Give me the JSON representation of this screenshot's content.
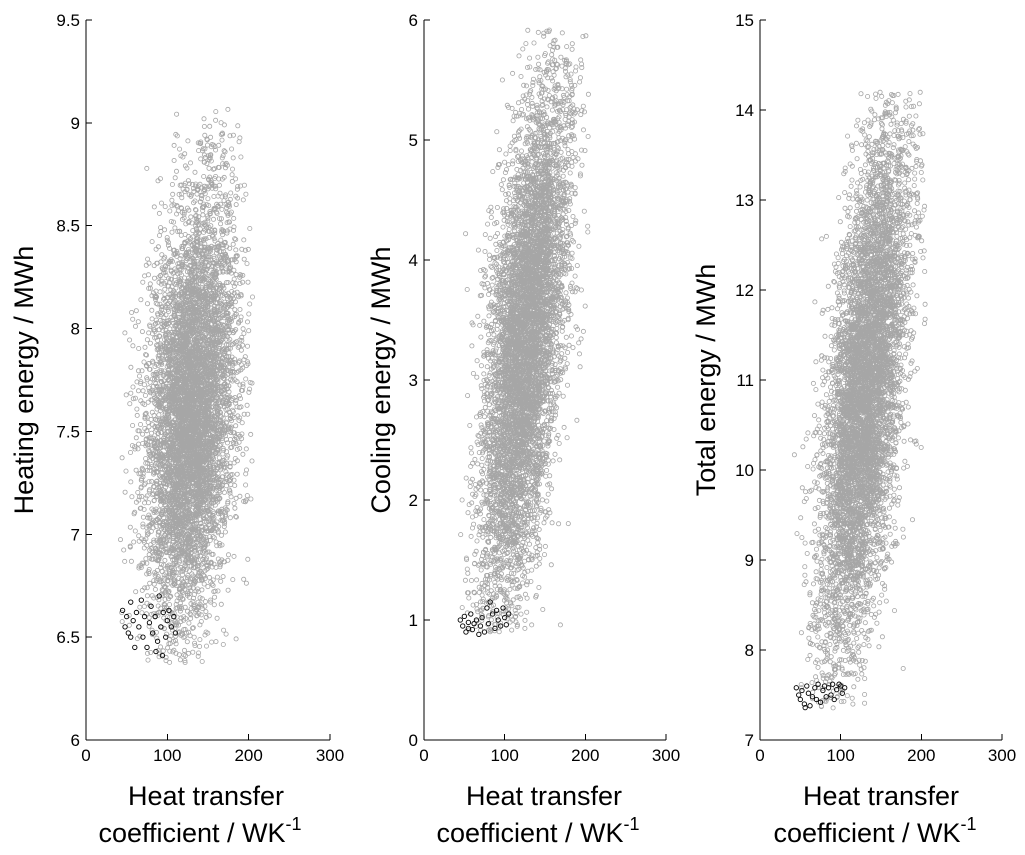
{
  "chart_data": [
    {
      "type": "scatter",
      "xlabel_line1": "Heat transfer",
      "xlabel_line2": "coefficient / WK",
      "xlabel_sup": "-1",
      "ylabel": "Heating energy / MWh",
      "xlim": [
        0,
        300
      ],
      "ylim": [
        6,
        9.5
      ],
      "xticks": [
        "0",
        "100",
        "200",
        "300"
      ],
      "yticks": [
        "6",
        "6.5",
        "7",
        "7.5",
        "8",
        "8.5",
        "9",
        "9.5"
      ],
      "grid": false,
      "point_colors": {
        "cloud": "#a6a6a6",
        "highlight": "#000000"
      },
      "cloud": {
        "x_range": [
          40,
          205
        ],
        "y_range": [
          6.37,
          9.12
        ],
        "approx_points": 10000,
        "x_center": 130,
        "y_center": 7.6,
        "trend": "slightly increasing"
      },
      "highlighted": [
        [
          45,
          6.63
        ],
        [
          48,
          6.55
        ],
        [
          50,
          6.6
        ],
        [
          52,
          6.52
        ],
        [
          55,
          6.5
        ],
        [
          55,
          6.67
        ],
        [
          58,
          6.58
        ],
        [
          60,
          6.45
        ],
        [
          62,
          6.62
        ],
        [
          65,
          6.55
        ],
        [
          68,
          6.68
        ],
        [
          70,
          6.5
        ],
        [
          72,
          6.6
        ],
        [
          75,
          6.45
        ],
        [
          78,
          6.57
        ],
        [
          80,
          6.65
        ],
        [
          82,
          6.52
        ],
        [
          85,
          6.6
        ],
        [
          88,
          6.48
        ],
        [
          90,
          6.7
        ],
        [
          92,
          6.55
        ],
        [
          95,
          6.62
        ],
        [
          98,
          6.5
        ],
        [
          100,
          6.58
        ],
        [
          102,
          6.63
        ],
        [
          105,
          6.55
        ],
        [
          108,
          6.6
        ],
        [
          110,
          6.52
        ],
        [
          86,
          6.43
        ],
        [
          94,
          6.41
        ]
      ]
    },
    {
      "type": "scatter",
      "xlabel_line1": "Heat transfer",
      "xlabel_line2": "coefficient / WK",
      "xlabel_sup": "-1",
      "ylabel": "Cooling energy / MWh",
      "xlim": [
        0,
        300
      ],
      "ylim": [
        0,
        6
      ],
      "xticks": [
        "0",
        "100",
        "200",
        "300"
      ],
      "yticks": [
        "0",
        "1",
        "2",
        "3",
        "4",
        "5",
        "6"
      ],
      "grid": false,
      "point_colors": {
        "cloud": "#a6a6a6",
        "highlight": "#000000"
      },
      "cloud": {
        "x_range": [
          45,
          205
        ],
        "y_range": [
          0.9,
          5.92
        ],
        "approx_points": 10000,
        "x_center": 125,
        "y_center": 3.3,
        "trend": "strongly increasing"
      },
      "highlighted": [
        [
          45,
          1.0
        ],
        [
          48,
          0.95
        ],
        [
          50,
          1.03
        ],
        [
          52,
          0.9
        ],
        [
          55,
          0.98
        ],
        [
          58,
          1.05
        ],
        [
          60,
          0.92
        ],
        [
          65,
          1.0
        ],
        [
          68,
          0.88
        ],
        [
          70,
          0.95
        ],
        [
          72,
          1.02
        ],
        [
          75,
          0.9
        ],
        [
          78,
          1.1
        ],
        [
          80,
          0.97
        ],
        [
          82,
          1.15
        ],
        [
          85,
          1.05
        ],
        [
          88,
          0.93
        ],
        [
          90,
          1.08
        ],
        [
          92,
          1.0
        ],
        [
          95,
          0.95
        ],
        [
          98,
          1.1
        ],
        [
          100,
          1.02
        ],
        [
          102,
          0.96
        ],
        [
          105,
          1.05
        ],
        [
          55,
          0.93
        ],
        [
          62,
          0.97
        ]
      ]
    },
    {
      "type": "scatter",
      "xlabel_line1": "Heat transfer",
      "xlabel_line2": "coefficient / WK",
      "xlabel_sup": "-1",
      "ylabel": "Total energy / MWh",
      "xlim": [
        0,
        300
      ],
      "ylim": [
        7,
        15
      ],
      "xticks": [
        "0",
        "100",
        "200",
        "300"
      ],
      "yticks": [
        "7",
        "8",
        "9",
        "10",
        "11",
        "12",
        "13",
        "14",
        "15"
      ],
      "grid": false,
      "point_colors": {
        "cloud": "#a6a6a6",
        "highlight": "#000000"
      },
      "cloud": {
        "x_range": [
          42,
          205
        ],
        "y_range": [
          7.35,
          14.2
        ],
        "approx_points": 10000,
        "x_center": 130,
        "y_center": 10.9,
        "trend": "strongly increasing"
      },
      "highlighted": [
        [
          45,
          7.58
        ],
        [
          48,
          7.5
        ],
        [
          50,
          7.45
        ],
        [
          52,
          7.55
        ],
        [
          55,
          7.4
        ],
        [
          58,
          7.6
        ],
        [
          60,
          7.52
        ],
        [
          62,
          7.38
        ],
        [
          65,
          7.48
        ],
        [
          68,
          7.58
        ],
        [
          70,
          7.45
        ],
        [
          72,
          7.62
        ],
        [
          75,
          7.42
        ],
        [
          78,
          7.55
        ],
        [
          80,
          7.6
        ],
        [
          82,
          7.48
        ],
        [
          85,
          7.58
        ],
        [
          88,
          7.5
        ],
        [
          90,
          7.62
        ],
        [
          92,
          7.45
        ],
        [
          95,
          7.56
        ],
        [
          98,
          7.62
        ],
        [
          100,
          7.6
        ],
        [
          102,
          7.52
        ],
        [
          105,
          7.58
        ],
        [
          56,
          7.36
        ]
      ]
    }
  ]
}
